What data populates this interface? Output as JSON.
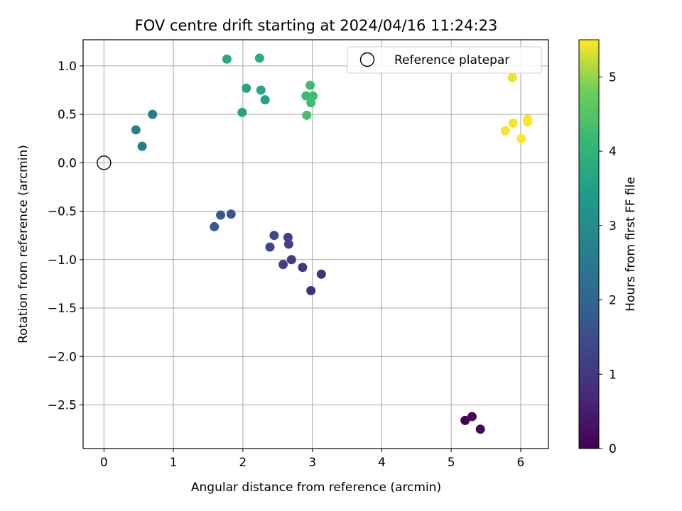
{
  "chart_data": {
    "type": "scatter",
    "title": "FOV centre drift starting at 2024/04/16 11:24:23",
    "xlabel": "Angular distance from reference (arcmin)",
    "ylabel": "Rotation from reference (arcmin)",
    "xlim": [
      -0.3,
      6.4
    ],
    "ylim": [
      -2.95,
      1.27
    ],
    "xticks": [
      0,
      1,
      2,
      3,
      4,
      5,
      6
    ],
    "xtick_labels": [
      "0",
      "1",
      "2",
      "3",
      "4",
      "5",
      "6"
    ],
    "yticks": [
      1.0,
      0.5,
      0.0,
      -0.5,
      -1.0,
      -1.5,
      -2.0,
      -2.5
    ],
    "ytick_labels": [
      "1.0",
      "0.5",
      "0.0",
      "−0.5",
      "−1.0",
      "−1.5",
      "−2.0",
      "−2.5"
    ],
    "grid": true,
    "colormap": "viridis",
    "colorbar": {
      "label": "Hours from first FF file",
      "range": [
        0,
        5.5
      ],
      "ticks": [
        0,
        1,
        2,
        3,
        4,
        5
      ],
      "tick_labels": [
        "0",
        "1",
        "2",
        "3",
        "4",
        "5"
      ]
    },
    "reference_point": {
      "x": 0,
      "y": 0,
      "label": "Reference platepar"
    },
    "legend_position": "top-right",
    "points": [
      {
        "x": 5.2,
        "y": -2.66,
        "hours": 0.0
      },
      {
        "x": 5.3,
        "y": -2.62,
        "hours": 0.05
      },
      {
        "x": 5.42,
        "y": -2.75,
        "hours": 0.1
      },
      {
        "x": 2.98,
        "y": -1.32,
        "hours": 0.85
      },
      {
        "x": 3.13,
        "y": -1.15,
        "hours": 0.9
      },
      {
        "x": 2.86,
        "y": -1.08,
        "hours": 1.0
      },
      {
        "x": 2.7,
        "y": -1.0,
        "hours": 1.1
      },
      {
        "x": 2.58,
        "y": -1.05,
        "hours": 1.15
      },
      {
        "x": 2.66,
        "y": -0.84,
        "hours": 1.2
      },
      {
        "x": 2.65,
        "y": -0.77,
        "hours": 1.25
      },
      {
        "x": 2.39,
        "y": -0.87,
        "hours": 1.3
      },
      {
        "x": 2.45,
        "y": -0.75,
        "hours": 1.35
      },
      {
        "x": 1.83,
        "y": -0.53,
        "hours": 1.7
      },
      {
        "x": 1.68,
        "y": -0.54,
        "hours": 1.75
      },
      {
        "x": 1.59,
        "y": -0.66,
        "hours": 1.8
      },
      {
        "x": 0.7,
        "y": 0.5,
        "hours": 2.55
      },
      {
        "x": 0.55,
        "y": 0.17,
        "hours": 2.65
      },
      {
        "x": 0.46,
        "y": 0.34,
        "hours": 2.7
      },
      {
        "x": 2.32,
        "y": 0.65,
        "hours": 3.55
      },
      {
        "x": 1.99,
        "y": 0.52,
        "hours": 3.6
      },
      {
        "x": 2.05,
        "y": 0.77,
        "hours": 3.6
      },
      {
        "x": 2.26,
        "y": 0.75,
        "hours": 3.65
      },
      {
        "x": 1.77,
        "y": 1.07,
        "hours": 3.75
      },
      {
        "x": 2.24,
        "y": 1.08,
        "hours": 3.85
      },
      {
        "x": 2.91,
        "y": 0.69,
        "hours": 4.2
      },
      {
        "x": 3.01,
        "y": 0.69,
        "hours": 4.25
      },
      {
        "x": 2.97,
        "y": 0.8,
        "hours": 4.25
      },
      {
        "x": 2.98,
        "y": 0.62,
        "hours": 4.3
      },
      {
        "x": 2.92,
        "y": 0.49,
        "hours": 4.35
      },
      {
        "x": 5.88,
        "y": 0.88,
        "hours": 5.4
      },
      {
        "x": 5.89,
        "y": 0.41,
        "hours": 5.45
      },
      {
        "x": 5.78,
        "y": 0.33,
        "hours": 5.45
      },
      {
        "x": 6.1,
        "y": 0.45,
        "hours": 5.5
      },
      {
        "x": 6.1,
        "y": 0.42,
        "hours": 5.5
      },
      {
        "x": 6.01,
        "y": 0.25,
        "hours": 5.5
      }
    ]
  }
}
